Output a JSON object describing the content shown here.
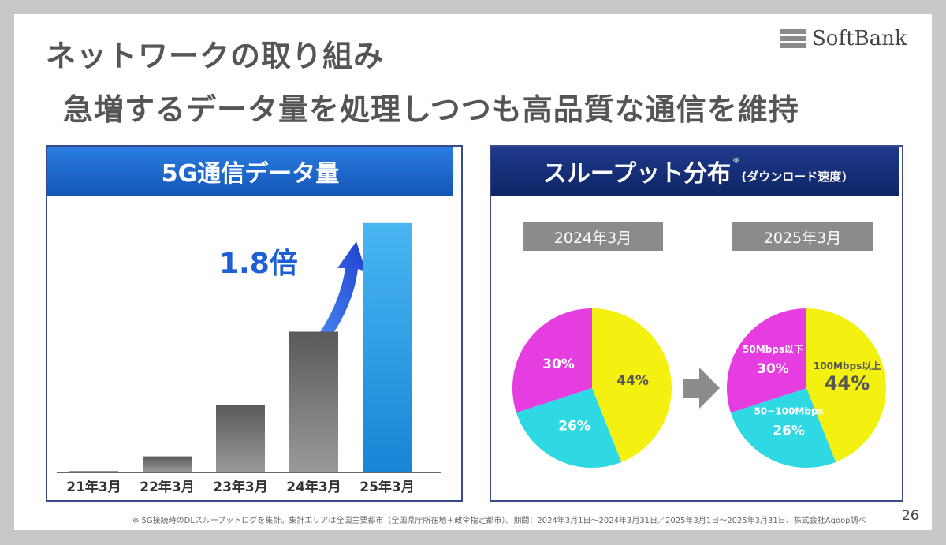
{
  "slide": {
    "title_line1": "ネットワークの取り組み",
    "title_line2": "急増するデータ量を処理しつつも高品質な通信を維持",
    "logo_text": "SoftBank",
    "footnote": "※ 5G接続時のDLスループットログを集計。集計エリアは全国主要都市（全国県庁所在地＋政令指定都市）。期間：2024年3月1日〜2024年3月31日／2025年3月1日〜2025年3月31日、株式会社Agoop調べ",
    "page_number": "26"
  },
  "left_panel": {
    "title": "5G通信データ量",
    "growth_label": "1.8倍"
  },
  "right_panel": {
    "title": "スループット分布",
    "title_mark": "※",
    "subtitle": "(ダウンロード速度)",
    "year_labels": [
      "2024年3月",
      "2025年3月"
    ]
  },
  "colors": {
    "bar_gray": "#6f6f6f",
    "bar_blue": "#2e9be6",
    "arrow_blue": "#1f5fd6",
    "pie_magenta": "#e63de0",
    "pie_cyan": "#2fd9e3",
    "pie_yellow": "#f4f010",
    "header_blue": "#1a63c9",
    "header_navy": "#15307a"
  },
  "chart_data": [
    {
      "type": "bar",
      "title": "5G通信データ量",
      "categories": [
        "21年3月",
        "22年3月",
        "23年3月",
        "24年3月",
        "25年3月"
      ],
      "values": [
        0.5,
        6,
        25,
        52.5,
        93
      ],
      "ylim": [
        0,
        100
      ],
      "annotations": [
        "1.8倍"
      ],
      "grid": false
    },
    {
      "type": "pie",
      "title": "2024年3月",
      "labels": [
        "",
        "",
        ""
      ],
      "values": [
        44,
        26,
        30
      ],
      "value_labels": [
        "44%",
        "26%",
        "30%"
      ]
    },
    {
      "type": "pie",
      "title": "2025年3月",
      "labels": [
        "100Mbps以上",
        "50~100Mbps",
        "50Mbps以下"
      ],
      "values": [
        44,
        26,
        30
      ],
      "value_labels": [
        "44%",
        "26%",
        "30%"
      ]
    }
  ]
}
